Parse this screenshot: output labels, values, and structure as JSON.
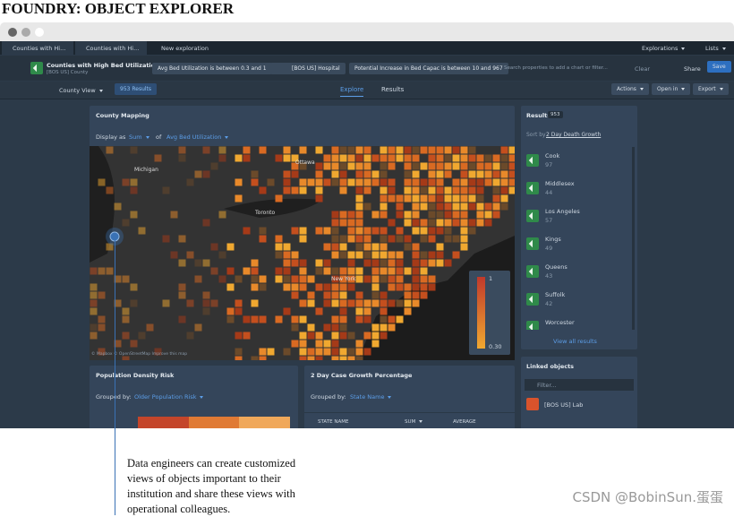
{
  "page_title": "FOUNDRY: OBJECT EXPLORER",
  "browser": {
    "tabs": [
      "Counties with Hi...",
      "Counties with Hi...",
      "New exploration"
    ],
    "right_menus": [
      "Explorations",
      "Lists"
    ]
  },
  "header": {
    "object_set": "Counties with High Bed Utilization",
    "object_type": "[BOS US] County",
    "filters": [
      "Avg Bed Utilization is between 0.3 and 1",
      "[BOS US] Hospital",
      "Potential Increase in Bed Capac is between 10 and 967"
    ],
    "search_placeholder": "Search properties to add a chart or filter...",
    "clear": "Clear",
    "share": "Share",
    "save": "Save"
  },
  "toolbar": {
    "view": "County View",
    "results_count": "953 Results",
    "tabs": [
      "Explore",
      "Results"
    ],
    "actions": [
      "Actions",
      "Open in",
      "Export"
    ]
  },
  "map_panel": {
    "title": "County Mapping",
    "display_as": "Display as",
    "aggregation": "Sum",
    "of": "of",
    "property": "Avg Bed Utilization",
    "legend_max": "1",
    "legend_min": "0.30",
    "places": [
      "Ottawa",
      "Toronto",
      "Michigan",
      "New York"
    ],
    "attribution": "© Mapbox © OpenStreetMap Improve this map"
  },
  "results_panel": {
    "title": "Results",
    "count": "953",
    "sort_label": "Sort by",
    "sort_property": "2 Day Death Growth",
    "items": [
      {
        "name": "Cook",
        "value": 97
      },
      {
        "name": "Middlesex",
        "value": 44
      },
      {
        "name": "Los Angeles",
        "value": 57
      },
      {
        "name": "Kings",
        "value": 49
      },
      {
        "name": "Queens",
        "value": 43
      },
      {
        "name": "Suffolk",
        "value": 42
      },
      {
        "name": "Worcester"
      }
    ],
    "view_all": "View all results"
  },
  "linked_panel": {
    "title": "Linked objects",
    "filter_placeholder": "Filter...",
    "items": [
      "[BOS US] Lab"
    ]
  },
  "population_panel": {
    "title": "Population Density Risk",
    "grouped_by": "Grouped by:",
    "group": "Older Population Risk"
  },
  "growth_panel": {
    "title": "2 Day Case Growth Percentage",
    "grouped_by": "Grouped by:",
    "group": "State Name",
    "columns": [
      "STATE NAME",
      "SUM",
      "AVERAGE"
    ]
  },
  "annotation": [
    "Data engineers can create customized",
    "views of objects important to their",
    "institution and share these views with",
    "operational colleagues."
  ],
  "watermark": "CSDN @BobinSun.蛋蛋"
}
